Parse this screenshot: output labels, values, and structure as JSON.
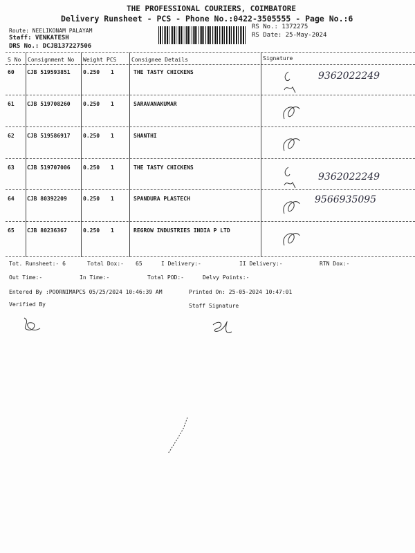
{
  "header": {
    "company": "THE PROFESSIONAL COURIERS, COIMBATORE",
    "subtitle": "Delivery Runsheet - PCS - Phone No.:0422-3505555 - Page No.:6",
    "route": "Route: NEELIKONAM PALAYAM",
    "staff": "Staff: VENKATESH",
    "drs": "DRS No.: DCJB137227506",
    "rs_no": "RS No.: 1372275",
    "rs_date": "RS Date: 25-May-2024"
  },
  "columns": [
    "S No",
    "Consignment No",
    "Weight",
    "PCS",
    "Consignee Details",
    "Signature"
  ],
  "rows": [
    {
      "sno": "60",
      "cons": "CJB 519593851",
      "weight": "0.250",
      "pcs": "1",
      "consignee": "THE TASTY CHICKENS",
      "note": "9362022249"
    },
    {
      "sno": "61",
      "cons": "CJB 519708260",
      "weight": "0.250",
      "pcs": "1",
      "consignee": "SARAVANAKUMAR",
      "note": ""
    },
    {
      "sno": "62",
      "cons": "CJB 519586917",
      "weight": "0.250",
      "pcs": "1",
      "consignee": "SHANTHI",
      "note": ""
    },
    {
      "sno": "63",
      "cons": "CJB 519707006",
      "weight": "0.250",
      "pcs": "1",
      "consignee": "THE TASTY CHICKENS",
      "note": "9362022249"
    },
    {
      "sno": "64",
      "cons": "CJB 80392209",
      "weight": "0.250",
      "pcs": "1",
      "consignee": "SPANDURA PLASTECH",
      "note": "9566935095"
    },
    {
      "sno": "65",
      "cons": "CJB 80236367",
      "weight": "0.250",
      "pcs": "1",
      "consignee": "REGROW INDUSTRIES INDIA P LTD",
      "note": ""
    }
  ],
  "summary": {
    "tot_runsheet": "Tot. Runsheet:- 6",
    "total_dox": "Total Dox:-",
    "total_dox_val": "65",
    "i_delivery": "I Delivery:-",
    "ii_delivery": "II Delivery:-",
    "rtn_dox": "RTN Dox:-",
    "out_time": "Out Time:-",
    "in_time": "In Time:-",
    "total_pod": "Total POD:-",
    "delvy_points": "Delvy Points:-",
    "entered_by": "Entered By :POORNIMAPCS 05/25/2024 10:46:39 AM",
    "printed_on": "Printed On: 25-05-2024 10:47:01",
    "verified_by": "Verified By",
    "staff_signature": "Staff Signature"
  }
}
